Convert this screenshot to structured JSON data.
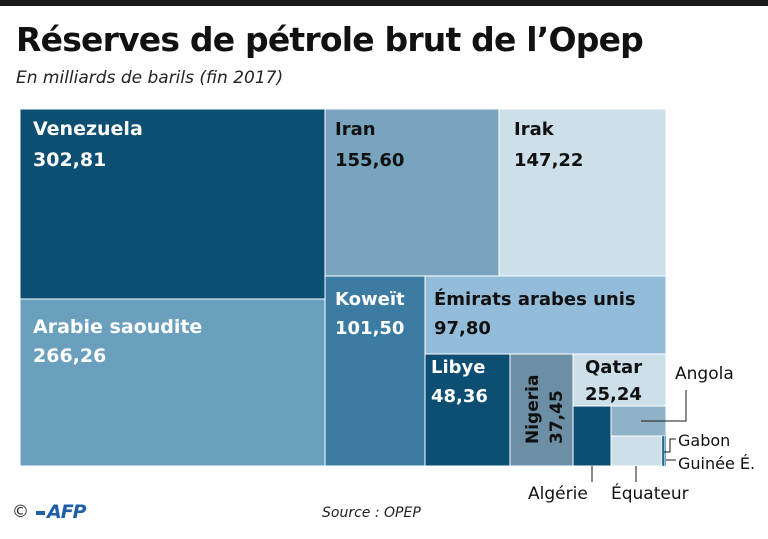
{
  "title": "Réserves de pétrole brut de l’Opep",
  "subtitle": "En milliards de barils (fin 2017)",
  "source": "Source : OPEP",
  "copyright": "©",
  "logo": "AFP",
  "chart_data": {
    "type": "treemap",
    "unit": "milliards de barils",
    "items": [
      {
        "name": "Venezuela",
        "value_label": "302,81",
        "value": 302.81,
        "color": "#0d4f73"
      },
      {
        "name": "Arabie saoudite",
        "value_label": "266,26",
        "value": 266.26,
        "color": "#6a9fbe"
      },
      {
        "name": "Iran",
        "value_label": "155,60",
        "value": 155.6,
        "color": "#78a4bf"
      },
      {
        "name": "Irak",
        "value_label": "147,22",
        "value": 147.22,
        "color": "#cde0ea"
      },
      {
        "name": "Koweït",
        "value_label": "101,50",
        "value": 101.5,
        "color": "#3c7ca3"
      },
      {
        "name": "Émirats arabes unis",
        "value_label": "97,80",
        "value": 97.8,
        "color": "#93bcdb"
      },
      {
        "name": "Libye",
        "value_label": "48,36",
        "value": 48.36,
        "color": "#0d4f73"
      },
      {
        "name": "Nigeria",
        "value_label": "37,45",
        "value": 37.45,
        "color": "#6c8fa6"
      },
      {
        "name": "Qatar",
        "value_label": "25,24",
        "value": 25.24,
        "color": "#cde0ea"
      },
      {
        "name": "Algérie",
        "value": 12.2,
        "color": "#0d4f73"
      },
      {
        "name": "Angola",
        "value": 8.4,
        "color": "#8fb2c7"
      },
      {
        "name": "Équateur",
        "value": 8.3,
        "color": "#cde0ea"
      },
      {
        "name": "Gabon",
        "value": 2.0,
        "color": "#1e6a94"
      },
      {
        "name": "Guinée É.",
        "value": 1.1,
        "color": "#5f94b8"
      }
    ]
  }
}
